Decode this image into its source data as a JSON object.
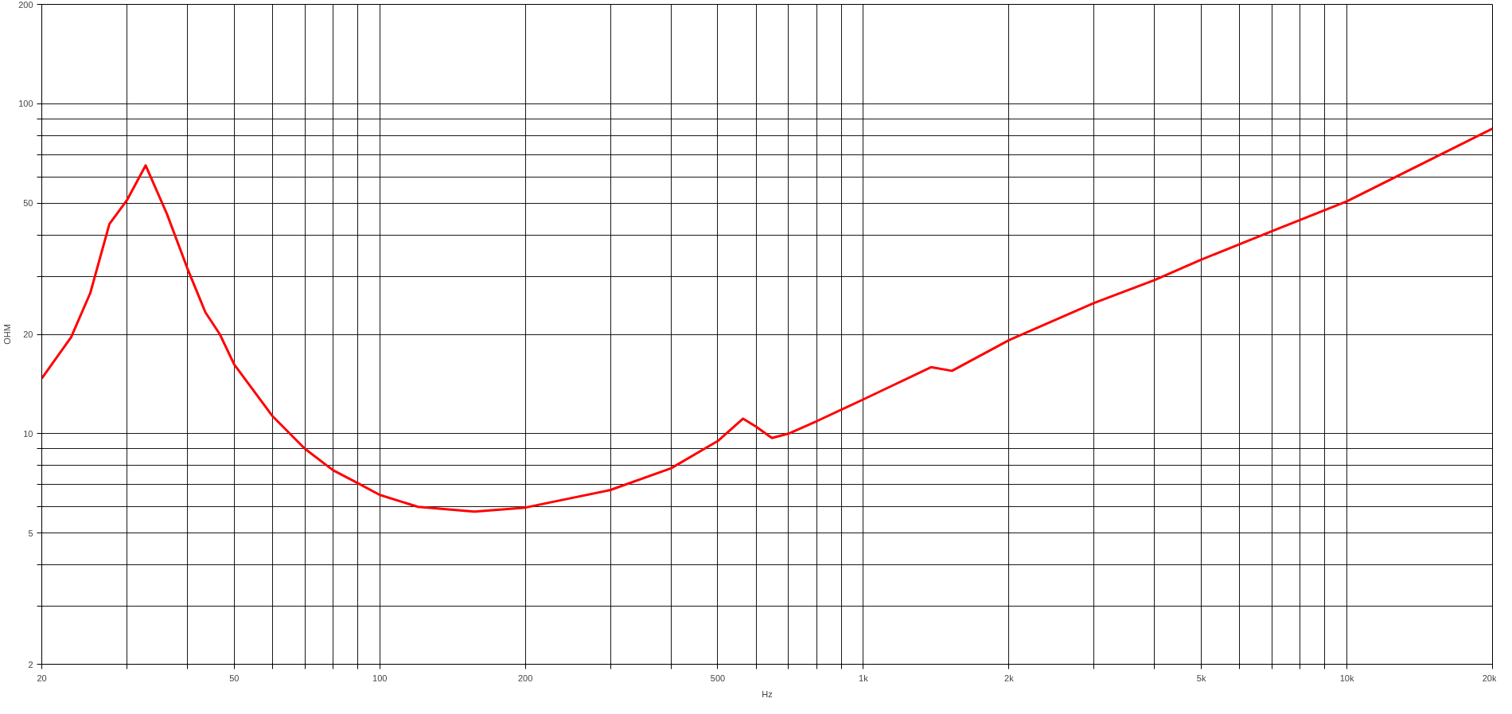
{
  "chart_data": {
    "type": "line",
    "xlabel": "Hz",
    "ylabel": "OHM",
    "log": "xy",
    "grid": true,
    "line_style": "solid",
    "marker": "none",
    "xlim": [
      20,
      20000
    ],
    "ylim": [
      2,
      200
    ],
    "xticks": [
      20,
      {
        "value": 30,
        "label": null
      },
      {
        "value": 40,
        "label": null
      },
      50,
      {
        "value": 60,
        "label": null
      },
      {
        "value": 70,
        "label": null
      },
      {
        "value": 80,
        "label": null
      },
      {
        "value": 90,
        "label": null
      },
      100,
      200,
      {
        "value": 300,
        "label": null
      },
      {
        "value": 400,
        "label": null
      },
      500,
      {
        "value": 600,
        "label": null
      },
      {
        "value": 700,
        "label": null
      },
      {
        "value": 800,
        "label": null
      },
      {
        "value": 900,
        "label": null
      },
      {
        "value": 1000,
        "label": "1k"
      },
      {
        "value": 2000,
        "label": "2k"
      },
      {
        "value": 3000,
        "label": null
      },
      {
        "value": 4000,
        "label": null
      },
      {
        "value": 5000,
        "label": "5k"
      },
      {
        "value": 6000,
        "label": null
      },
      {
        "value": 7000,
        "label": null
      },
      {
        "value": 8000,
        "label": null
      },
      {
        "value": 9000,
        "label": null
      },
      {
        "value": 10000,
        "label": "10k"
      },
      {
        "value": 20000,
        "label": "20k"
      }
    ],
    "yticks": [
      2,
      {
        "value": 3,
        "label": null
      },
      {
        "value": 4,
        "label": null
      },
      5,
      {
        "value": 6,
        "label": null
      },
      {
        "value": 7,
        "label": null
      },
      {
        "value": 8,
        "label": null
      },
      {
        "value": 9,
        "label": null
      },
      10,
      20,
      {
        "value": 30,
        "label": null
      },
      {
        "value": 40,
        "label": null
      },
      50,
      {
        "value": 60,
        "label": null
      },
      {
        "value": 70,
        "label": null
      },
      {
        "value": 80,
        "label": null
      },
      {
        "value": 90,
        "label": null
      },
      100,
      200
    ],
    "series": [
      {
        "color": "#ff0000",
        "x": [
          20,
          23,
          25.2,
          27.6,
          30,
          32.8,
          36.3,
          40,
          43.6,
          46.7,
          50,
          60,
          70,
          80,
          90,
          100,
          120,
          157,
          200,
          300,
          400,
          500,
          564,
          600,
          647,
          700,
          800,
          1000,
          1380,
          1525,
          2000,
          3000,
          4000,
          5000,
          7000,
          10000,
          20000
        ],
        "values": [
          14.7,
          19.6,
          26.7,
          43.2,
          51,
          65,
          46.3,
          31.7,
          23.3,
          20,
          16.2,
          11.3,
          9,
          7.75,
          7.08,
          6.52,
          6.0,
          5.8,
          5.97,
          6.75,
          7.85,
          9.5,
          11.1,
          10.5,
          9.7,
          10,
          10.9,
          12.7,
          15.9,
          15.5,
          19.2,
          24.9,
          29.2,
          33.7,
          41.1,
          50.6,
          84
        ]
      }
    ]
  }
}
